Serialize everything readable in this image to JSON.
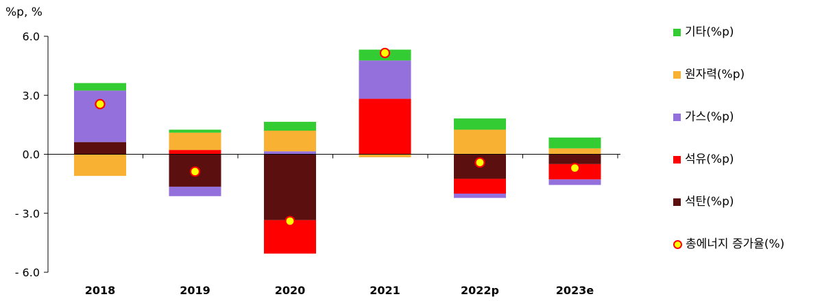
{
  "chart_data": {
    "type": "bar",
    "stacked": true,
    "unit_label": "%p, %",
    "categories": [
      "2018",
      "2019",
      "2020",
      "2021",
      "2022p",
      "2023e"
    ],
    "ylim": [
      -6.0,
      6.0
    ],
    "yticks": [
      "6.0",
      "3.0",
      "0.0",
      "- 3.0",
      "- 6.0"
    ],
    "ytick_values": [
      6,
      3,
      0,
      -3,
      -6
    ],
    "series": [
      {
        "name": "석탄(%p)",
        "color": "#5c0f0f",
        "values": [
          0.62,
          -1.65,
          -3.35,
          0.0,
          -1.25,
          -0.5
        ]
      },
      {
        "name": "석유(%p)",
        "color": "#ff0000",
        "values": [
          0.0,
          0.22,
          -1.7,
          2.82,
          -0.75,
          -0.78
        ]
      },
      {
        "name": "가스(%p)",
        "color": "#9370db",
        "values": [
          2.62,
          -0.48,
          0.15,
          1.95,
          -0.22,
          -0.28
        ]
      },
      {
        "name": "원자력(%p)",
        "color": "#f8b133",
        "values": [
          -1.1,
          0.88,
          1.05,
          -0.15,
          1.25,
          0.3
        ]
      },
      {
        "name": "기타(%p)",
        "color": "#33cc33",
        "values": [
          0.38,
          0.15,
          0.45,
          0.55,
          0.57,
          0.55
        ]
      }
    ],
    "line_series": {
      "name": "총에너지 증가율(%)",
      "values": [
        2.55,
        -0.88,
        -3.4,
        5.15,
        -0.42,
        -0.7
      ],
      "marker_fill": "#ffff00",
      "marker_edge": "#ff0000"
    },
    "legend_order": [
      "기타(%p)",
      "원자력(%p)",
      "가스(%p)",
      "석유(%p)",
      "석탄(%p)",
      "총에너지 증가율(%)"
    ],
    "legend_position": "right",
    "grid": false
  }
}
